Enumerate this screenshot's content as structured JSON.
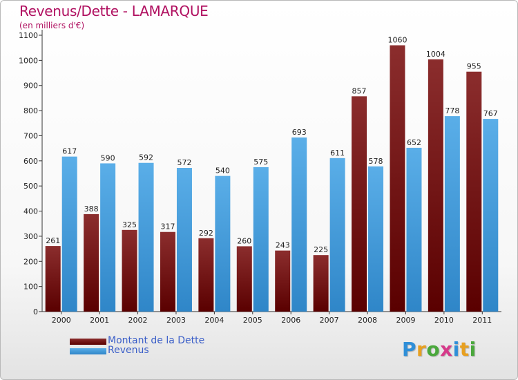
{
  "title": "Revenus/Dette - LAMARQUE",
  "subtitle": "(en milliers d'€)",
  "logo": {
    "text": "Proxiti",
    "colors": [
      "#2f8fd8",
      "#e8a020",
      "#4aa83c",
      "#d63a8a",
      "#2f8fd8",
      "#e8a020",
      "#4aa83c"
    ]
  },
  "colors": {
    "dette_top": "#8b2d2d",
    "dette_bottom": "#5a0000",
    "revenus_top": "#5aaee8",
    "revenus_bottom": "#2f86c8",
    "axis": "#333333",
    "grid": "#cccccc"
  },
  "chart_data": {
    "type": "bar",
    "title": "Revenus/Dette - LAMARQUE",
    "subtitle": "(en milliers d'€)",
    "categories": [
      "2000",
      "2001",
      "2002",
      "2003",
      "2004",
      "2005",
      "2006",
      "2007",
      "2008",
      "2009",
      "2010",
      "2011"
    ],
    "series": [
      {
        "name": "Montant de la Dette",
        "values": [
          261,
          388,
          325,
          317,
          292,
          260,
          243,
          225,
          857,
          1060,
          1004,
          955
        ]
      },
      {
        "name": "Revenus",
        "values": [
          617,
          590,
          592,
          572,
          540,
          575,
          693,
          611,
          578,
          652,
          778,
          767
        ]
      }
    ],
    "ylim": [
      0,
      1100
    ],
    "yticks": [
      0,
      100,
      200,
      300,
      400,
      500,
      600,
      700,
      800,
      900,
      1000,
      1100
    ],
    "grid": false,
    "legend": "bottom-left"
  }
}
